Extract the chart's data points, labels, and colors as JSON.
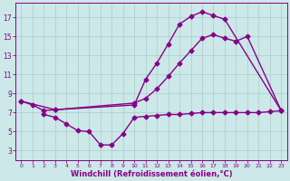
{
  "bg_color": "#cce8e8",
  "grid_color": "#aacccc",
  "line_color": "#880088",
  "marker": "D",
  "markersize": 2.5,
  "linewidth": 1.0,
  "xlabel": "Windchill (Refroidissement éolien,°C)",
  "xlabel_fontsize": 6,
  "ytick_labels": [
    "3",
    "5",
    "7",
    "9",
    "11",
    "13",
    "15",
    "17"
  ],
  "yticks": [
    3,
    5,
    7,
    9,
    11,
    13,
    15,
    17
  ],
  "xticks": [
    0,
    1,
    2,
    3,
    4,
    5,
    6,
    7,
    8,
    9,
    10,
    11,
    12,
    13,
    14,
    15,
    16,
    17,
    18,
    19,
    20,
    21,
    22,
    23
  ],
  "xlim": [
    -0.5,
    23.5
  ],
  "ylim": [
    2.0,
    18.5
  ],
  "line1_x": [
    0,
    1,
    2,
    3,
    10,
    11,
    12,
    13,
    14,
    15,
    16,
    17,
    18,
    23
  ],
  "line1_y": [
    8.2,
    7.8,
    7.2,
    7.3,
    7.8,
    10.5,
    12.2,
    14.2,
    16.3,
    17.1,
    17.6,
    17.2,
    16.8,
    7.2
  ],
  "line2_x": [
    0,
    3,
    10,
    11,
    12,
    13,
    14,
    15,
    16,
    17,
    18,
    19,
    20,
    23
  ],
  "line2_y": [
    8.2,
    7.3,
    8.0,
    8.5,
    9.5,
    10.8,
    12.2,
    13.5,
    14.8,
    15.2,
    14.8,
    14.5,
    15.0,
    7.2
  ],
  "line3_x": [
    2,
    3,
    4,
    5,
    6,
    7,
    8,
    9,
    10,
    11,
    12,
    13,
    14,
    15,
    16,
    17,
    18,
    19,
    20,
    21,
    22,
    23
  ],
  "line3_y": [
    6.8,
    6.5,
    5.8,
    5.1,
    5.0,
    3.6,
    3.6,
    4.8,
    6.5,
    6.6,
    6.7,
    6.8,
    6.8,
    6.9,
    7.0,
    7.0,
    7.0,
    7.0,
    7.0,
    7.0,
    7.1,
    7.2
  ]
}
